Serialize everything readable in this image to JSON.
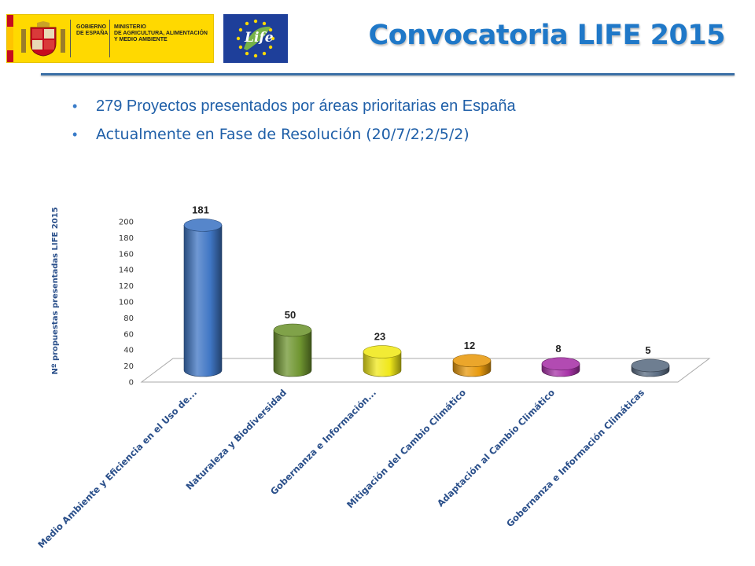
{
  "header": {
    "gov_logo": {
      "icon": "coat-of-arms-icon",
      "line1": "GOBIERNO\nDE ESPAÑA",
      "line2": "MINISTERIO\nDE AGRICULTURA, ALIMENTACIÓN\nY MEDIO AMBIENTE",
      "background": "#ffd900"
    },
    "eu_logo": {
      "icon": "eu-stars-icon",
      "text": "Life",
      "background": "#1e3f9a"
    },
    "title": "Convocatoria LIFE 2015",
    "title_color": "#1f78c8"
  },
  "bullets": [
    "279 Proyectos presentados por áreas prioritarias en España",
    "Actualmente en Fase de Resolución (20/7/2;2/5/2)"
  ],
  "chart_data": {
    "type": "bar",
    "style": "3d-cylinder",
    "ylabel": "Nº propuestas presentadas LIFE 2015",
    "xlabel": "",
    "ylim": [
      0,
      200
    ],
    "yticks": [
      0,
      20,
      40,
      60,
      80,
      100,
      120,
      140,
      160,
      180,
      200
    ],
    "grid": false,
    "legend": "none",
    "categories": [
      "Medio Ambiente y Eficiencia en el Uso de...",
      "Naturaleza y Biodiversidad",
      "Gobernanza e Información...",
      "Mitigación del Cambio Climático",
      "Adaptación al Cambio Climático",
      "Gobernanza e Información Climáticas"
    ],
    "values": [
      181,
      50,
      23,
      12,
      8,
      5
    ],
    "data_labels": [
      "181",
      "50",
      "23",
      "12",
      "8",
      "5"
    ],
    "colors": [
      "#3f76c4",
      "#6f9530",
      "#f0e81a",
      "#e89a0e",
      "#a833a8",
      "#5a6c82"
    ]
  }
}
